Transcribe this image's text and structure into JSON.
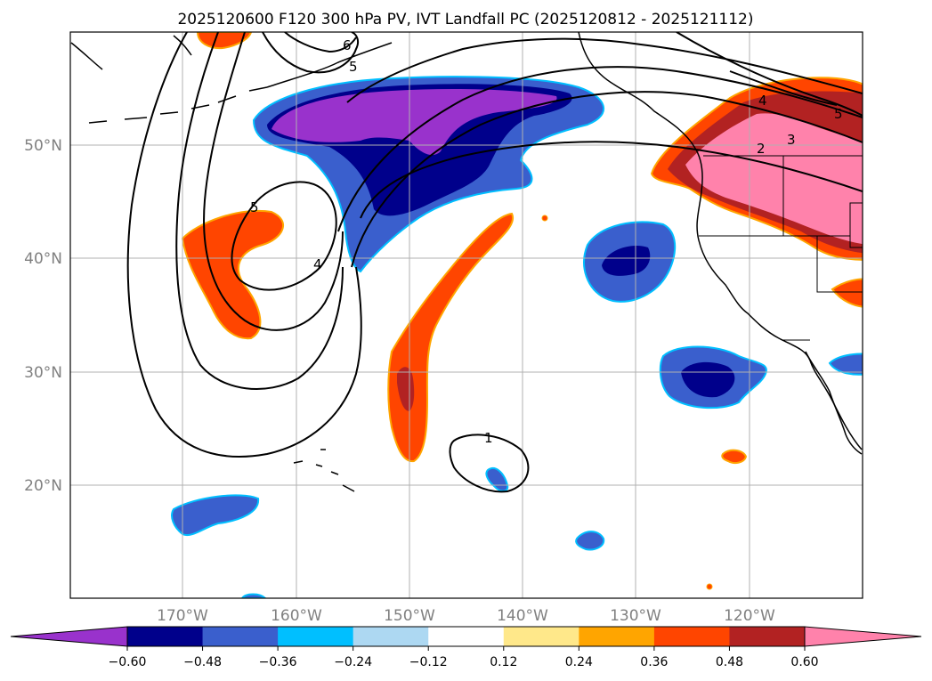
{
  "map": {
    "title": "2025120600 F120 300 hPa PV, IVT Landfall PC (2025120812 - 2025121112)",
    "projection": "lat-lon",
    "lat_range": [
      10,
      60
    ],
    "lon_range": [
      -180,
      -110
    ],
    "gridlines": true,
    "lat_gridlines": [
      {
        "value": 50,
        "label": "50°N"
      },
      {
        "value": 40,
        "label": "40°N"
      },
      {
        "value": 30,
        "label": "30°N"
      },
      {
        "value": 20,
        "label": "20°N"
      }
    ],
    "lon_gridlines": [
      {
        "value": -170,
        "label": "170°W"
      },
      {
        "value": -160,
        "label": "160°W"
      },
      {
        "value": -150,
        "label": "150°W"
      },
      {
        "value": -140,
        "label": "140°W"
      },
      {
        "value": -130,
        "label": "130°W"
      },
      {
        "value": -120,
        "label": "120°W"
      }
    ],
    "contour_labels": [
      "1",
      "2",
      "3",
      "4",
      "5",
      "5",
      "4",
      "6",
      "5"
    ]
  },
  "colorbar": {
    "orientation": "horizontal",
    "extend": "both",
    "tick_labels": [
      "−0.60",
      "−0.48",
      "−0.36",
      "−0.24",
      "−0.12",
      "0.12",
      "0.24",
      "0.36",
      "0.48",
      "0.60"
    ],
    "colors": [
      "#9932cc",
      "#00008b",
      "#3a5fcd",
      "#00bfff",
      "#add8f2",
      "#ffffff",
      "#ffe88a",
      "#ffa500",
      "#ff4500",
      "#b22222",
      "#ff82ab"
    ]
  }
}
